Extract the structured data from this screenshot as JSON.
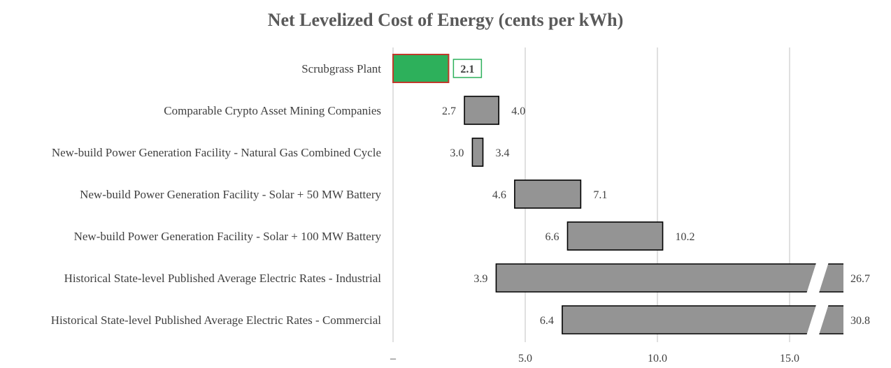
{
  "chart_data": {
    "type": "bar",
    "subtype": "floating-range-horizontal",
    "title": "Net Levelized Cost of Energy (cents per kWh)",
    "xlabel": "",
    "ylabel": "",
    "xlim": [
      0,
      17
    ],
    "x_ticks": [
      0,
      5,
      10,
      15
    ],
    "x_tick_labels": [
      "–",
      "5.0",
      "10.0",
      "15.0"
    ],
    "grid": "vertical",
    "axis_break_marker": "//",
    "categories": [
      "Scrubgrass Plant",
      "Comparable Crypto Asset Mining Companies",
      "New-build Power Generation Facility - Natural Gas Combined Cycle",
      "New-build Power Generation Facility - Solar + 50 MW Battery",
      "New-build Power Generation Facility - Solar + 100 MW Battery",
      "Historical State-level Published Average Electric Rates - Industrial",
      "Historical State-level Published Average Electric Rates - Commercial"
    ],
    "low_values": [
      null,
      2.7,
      3.0,
      4.6,
      6.6,
      3.9,
      6.4
    ],
    "high_values": [
      2.1,
      4.0,
      3.4,
      7.1,
      10.2,
      26.7,
      30.8
    ],
    "low_labels": [
      "",
      "2.7",
      "3.0",
      "4.6",
      "6.6",
      "3.9",
      "6.4"
    ],
    "high_labels": [
      "2.1",
      "4.0",
      "3.4",
      "7.1",
      "10.2",
      "26.7",
      "30.8"
    ],
    "colors": {
      "highlight_fill": "#2db05b",
      "highlight_border": "#c0392b",
      "highlight_label_border": "#2db05b",
      "bar_fill": "#949494",
      "bar_border": "#000000",
      "grid": "#d0d0d0",
      "title": "#595959",
      "text": "#404040"
    }
  }
}
